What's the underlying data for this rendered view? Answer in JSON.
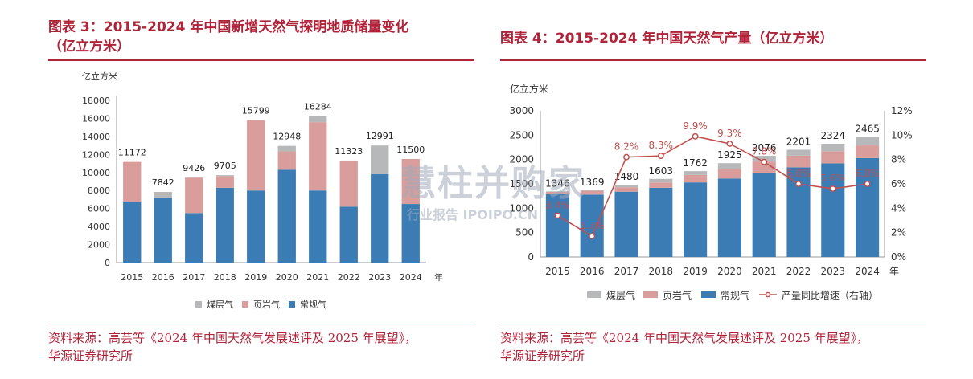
{
  "left": {
    "title_line1": "图表 3：2015-2024 年中国新增天然气探明地质储量变化",
    "title_line2": "（亿立方米）",
    "source_line1": "资料来源：高芸等《2024 年中国天然气发展述评及 2025 年展望》，",
    "source_line2": "华源证券研究所"
  },
  "right": {
    "title": "图表 4：2015-2024 年中国天然气产量（亿立方米）",
    "source_line1": "资料来源：高芸等《2024 年中国天然气发展述评及 2025 年展望》，",
    "source_line2": "华源证券研究所"
  },
  "watermark": {
    "main": "慧柱并购家",
    "sub": "行业报告 IPOIPO.CN"
  },
  "colors": {
    "coalbed": "#b7b8ba",
    "shale": "#d99e9b",
    "conventional": "#3b7cb5",
    "growth": "#c0504d",
    "brand": "#b0243a"
  },
  "chart_data": [
    {
      "type": "bar",
      "stacked": true,
      "unit_label": "亿立方米",
      "year_suffix": "年",
      "categories": [
        "2015",
        "2016",
        "2017",
        "2018",
        "2019",
        "2020",
        "2021",
        "2022",
        "2023",
        "2024"
      ],
      "totals": [
        "11172",
        "7842",
        "9426",
        "9705",
        "15799",
        "12948",
        "16284",
        "11323",
        "12991",
        "11500"
      ],
      "series": [
        {
          "name": "常规气",
          "values": [
            6700,
            7200,
            5500,
            8300,
            8000,
            10300,
            8000,
            6200,
            9800,
            6500
          ]
        },
        {
          "name": "页岩气",
          "values": [
            4472,
            0,
            3926,
            1305,
            7799,
            2048,
            7584,
            5123,
            0,
            5000
          ]
        },
        {
          "name": "煤层气",
          "values": [
            0,
            642,
            0,
            100,
            0,
            600,
            700,
            0,
            3191,
            0
          ]
        }
      ],
      "legend_order": [
        "煤层气",
        "页岩气",
        "常规气"
      ],
      "ylim": [
        0,
        18000
      ],
      "yticks": [
        0,
        2000,
        4000,
        6000,
        8000,
        10000,
        12000,
        14000,
        16000,
        18000
      ],
      "grid": false,
      "legend": "bottom"
    },
    {
      "type": "bar",
      "stacked": true,
      "unit_label": "亿立方米",
      "year_suffix": "年",
      "categories": [
        "2015",
        "2016",
        "2017",
        "2018",
        "2019",
        "2020",
        "2021",
        "2022",
        "2023",
        "2024"
      ],
      "totals": [
        "1346",
        "1369",
        "1480",
        "1603",
        "1762",
        "1925",
        "2076",
        "2201",
        "2324",
        "2465"
      ],
      "series": [
        {
          "name": "常规气",
          "values": [
            1290,
            1280,
            1340,
            1420,
            1530,
            1610,
            1730,
            1840,
            1920,
            2030
          ]
        },
        {
          "name": "页岩气",
          "values": [
            45,
            79,
            90,
            108,
            154,
            200,
            230,
            240,
            250,
            260
          ]
        },
        {
          "name": "煤层气",
          "values": [
            11,
            10,
            50,
            75,
            78,
            115,
            116,
            121,
            154,
            175
          ]
        }
      ],
      "line_series": {
        "name": "产量同比增速（右轴）",
        "values": [
          3.4,
          1.7,
          8.2,
          8.3,
          9.9,
          9.3,
          7.8,
          6.0,
          5.6,
          6.0
        ],
        "labels": [
          "3.4%",
          "1.7%",
          "8.2%",
          "8.3%",
          "9.9%",
          "9.3%",
          "7.8%",
          "6.0%",
          "5.6%",
          "6.0%"
        ]
      },
      "legend_order": [
        "煤层气",
        "页岩气",
        "常规气",
        "产量同比增速（右轴）"
      ],
      "ylim": [
        0,
        3000
      ],
      "yticks": [
        0,
        500,
        1000,
        1500,
        2000,
        2500,
        3000
      ],
      "y2lim": [
        0,
        12
      ],
      "y2ticks": [
        "0%",
        "2%",
        "4%",
        "6%",
        "8%",
        "10%",
        "12%"
      ],
      "grid": false,
      "legend": "bottom"
    }
  ]
}
